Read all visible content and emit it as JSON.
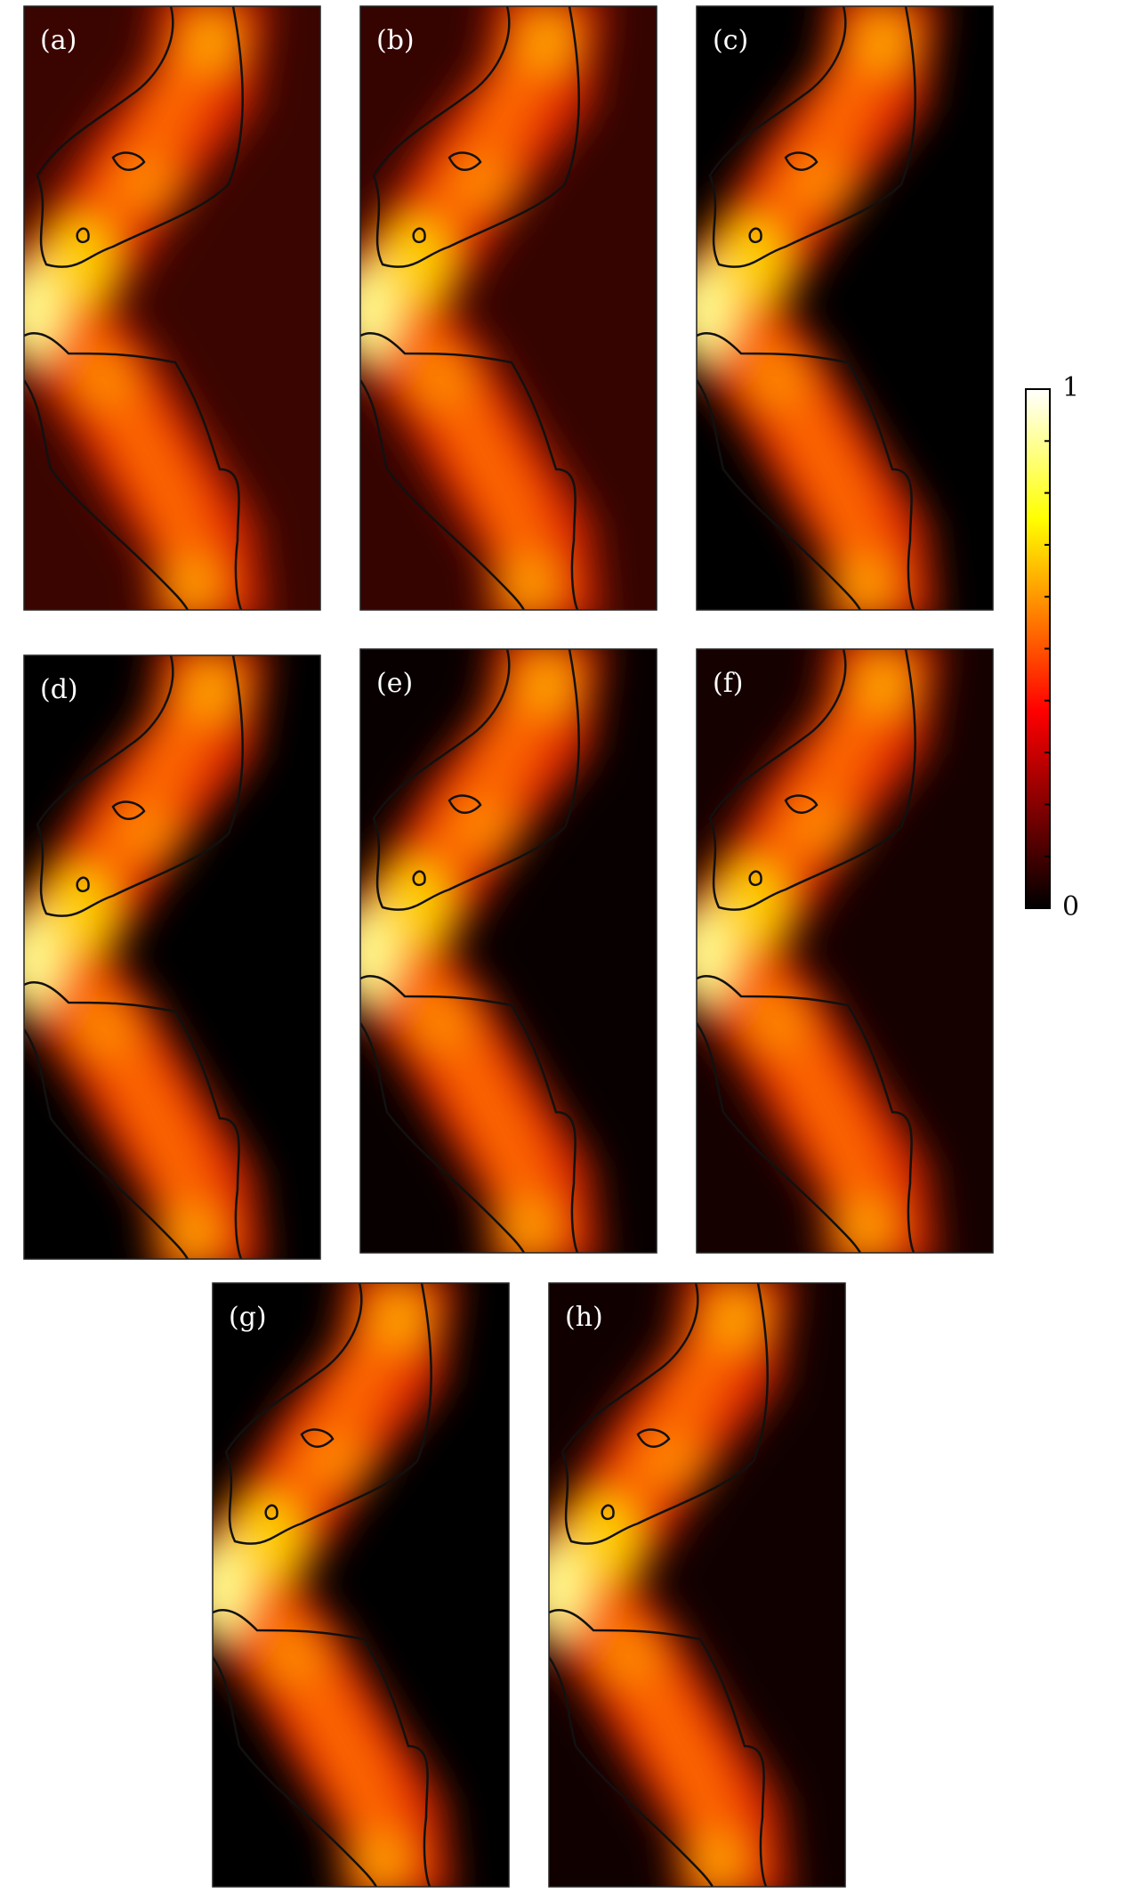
{
  "chart_data": {
    "type": "heatmap",
    "panels": [
      "(a)",
      "(b)",
      "(c)",
      "(d)",
      "(e)",
      "(f)",
      "(g)",
      "(h)"
    ],
    "colormap": "hot",
    "ylim": [
      0,
      1
    ],
    "yticks": [
      0,
      1
    ],
    "yminorticks": [
      0.1,
      0.2,
      0.3,
      0.4,
      0.5,
      0.6,
      0.7,
      0.8,
      0.9
    ]
  }
}
